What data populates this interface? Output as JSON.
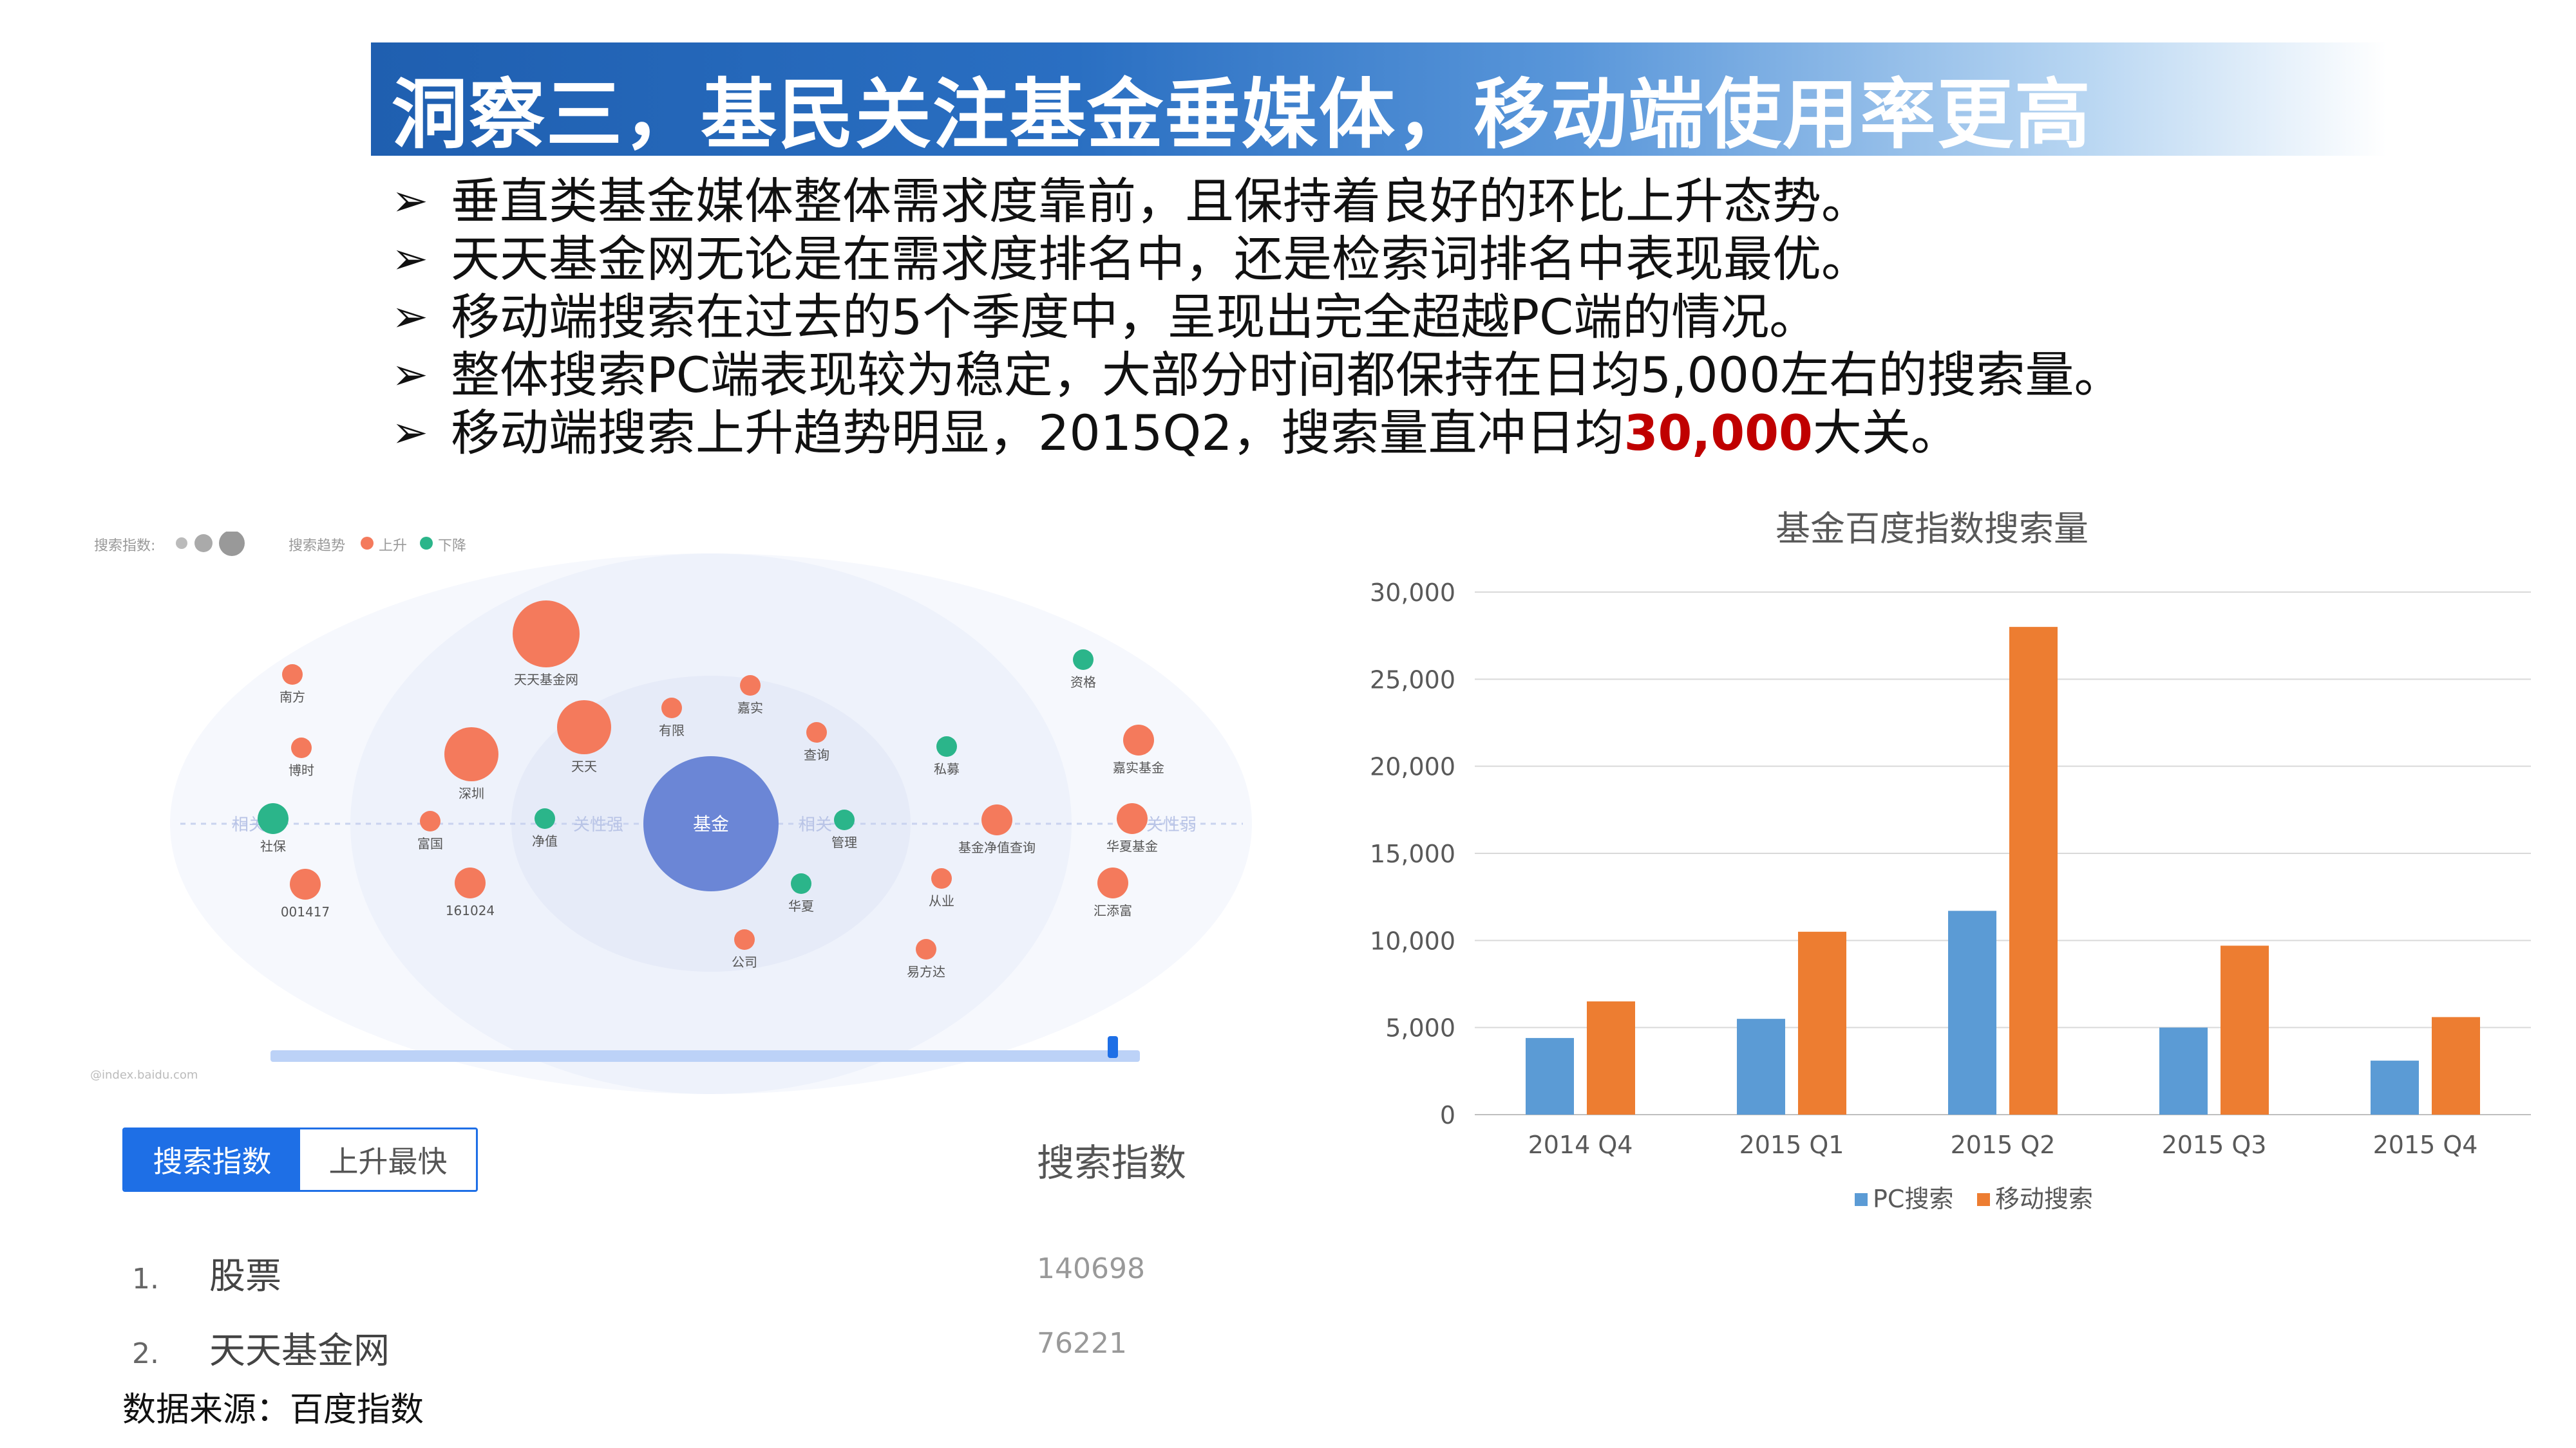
{
  "title": "洞察三，基民关注基金垂媒体，移动端使用率更高",
  "bullets": [
    {
      "text": "垂直类基金媒体整体需求度靠前，且保持着良好的环比上升态势。"
    },
    {
      "text": "天天基金网无论是在需求度排名中，还是检索词排名中表现最优。"
    },
    {
      "text": "移动端搜索在过去的5个季度中，呈现出完全超越PC端的情况。"
    },
    {
      "text": "整体搜索PC端表现较为稳定，大部分时间都保持在日均5,000左右的搜索量。"
    },
    {
      "pre": "移动端搜索上升趋势明显，2015Q2，搜索量直冲日均",
      "highlight": "30,000",
      "post": "大关。"
    }
  ],
  "mindmap": {
    "legend_index": "搜索指数:",
    "legend_trend": "搜索趋势",
    "legend_up": "上升",
    "legend_down": "下降",
    "center": "基金",
    "nodes": [
      {
        "label": "天天基金网",
        "trend": "up",
        "size": "xl"
      },
      {
        "label": "天天",
        "trend": "up",
        "size": "l"
      },
      {
        "label": "深圳",
        "trend": "up",
        "size": "l"
      },
      {
        "label": "南方",
        "trend": "up",
        "size": "s"
      },
      {
        "label": "博时",
        "trend": "up",
        "size": "s"
      },
      {
        "label": "社保",
        "trend": "down",
        "size": "m"
      },
      {
        "label": "富国",
        "trend": "up",
        "size": "s"
      },
      {
        "label": "净值",
        "trend": "down",
        "size": "s"
      },
      {
        "label": "有限",
        "trend": "up",
        "size": "s"
      },
      {
        "label": "嘉实",
        "trend": "up",
        "size": "s"
      },
      {
        "label": "查询",
        "trend": "up",
        "size": "s"
      },
      {
        "label": "管理",
        "trend": "down",
        "size": "s"
      },
      {
        "label": "华夏",
        "trend": "down",
        "size": "s"
      },
      {
        "label": "私募",
        "trend": "down",
        "size": "s"
      },
      {
        "label": "基金净值查询",
        "trend": "up",
        "size": "m"
      },
      {
        "label": "从业",
        "trend": "up",
        "size": "s"
      },
      {
        "label": "资格",
        "trend": "down",
        "size": "s"
      },
      {
        "label": "嘉实基金",
        "trend": "up",
        "size": "m"
      },
      {
        "label": "华夏基金",
        "trend": "up",
        "size": "m"
      },
      {
        "label": "汇添富",
        "trend": "up",
        "size": "m"
      },
      {
        "label": "易方达",
        "trend": "up",
        "size": "s"
      },
      {
        "label": "公司",
        "trend": "up",
        "size": "s"
      },
      {
        "label": "001417",
        "trend": "up",
        "size": "m"
      },
      {
        "label": "161024",
        "trend": "up",
        "size": "m"
      }
    ],
    "watermark": "@index.baidu.com",
    "colors": {
      "up": "#f47a5c",
      "down": "#2bb58a",
      "center": "#6b86d6"
    }
  },
  "ranking": {
    "tabs": [
      "搜索指数",
      "上升最快"
    ],
    "active_tab": 0,
    "column_header": "搜索指数",
    "rows": [
      {
        "rank": "1.",
        "name": "股票",
        "value": "140698"
      },
      {
        "rank": "2.",
        "name": "天天基金网",
        "value": "76221"
      }
    ]
  },
  "source": "数据来源：百度指数",
  "chart_data": {
    "type": "bar",
    "title": "基金百度指数搜索量",
    "categories": [
      "2014 Q4",
      "2015 Q1",
      "2015 Q2",
      "2015 Q3",
      "2015 Q4"
    ],
    "series": [
      {
        "name": "PC搜索",
        "values": [
          4400,
          5500,
          11700,
          5000,
          3100
        ],
        "color": "#5b9bd5"
      },
      {
        "name": "移动搜索",
        "values": [
          6500,
          10500,
          28000,
          9700,
          5600
        ],
        "color": "#ed7d31"
      }
    ],
    "yticks": [
      "0",
      "5,000",
      "10,000",
      "15,000",
      "20,000",
      "25,000",
      "30,000"
    ],
    "ylim": [
      0,
      30000
    ],
    "grid": true,
    "legend_position": "bottom"
  }
}
